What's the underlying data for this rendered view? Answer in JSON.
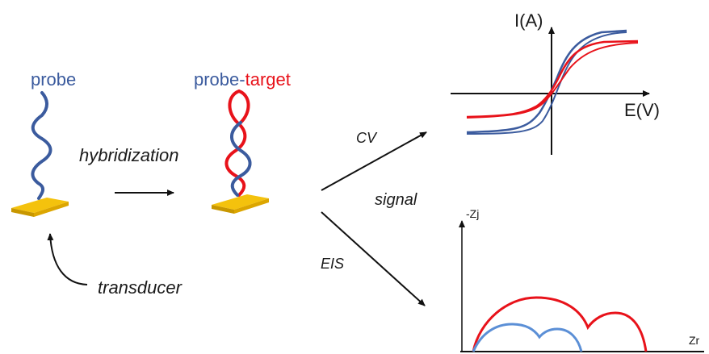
{
  "labels": {
    "probe": "probe",
    "probe_part": "probe",
    "dash": "-",
    "target_part": "target",
    "hybridization": "hybridization",
    "transducer": "transducer",
    "cv": "CV",
    "signal": "signal",
    "eis": "EIS"
  },
  "cv_plot": {
    "y_axis_label": "I(A)",
    "x_axis_label": "E(V)"
  },
  "eis_plot": {
    "y_axis_label": "-Zj",
    "x_axis_label": "Zr"
  },
  "colors": {
    "probe_strand": "#3b5b9e",
    "target_strand": "#e8121a",
    "electrode": "#f0b800",
    "eis_blue": "#5b8fd6",
    "eis_red": "#e8121a"
  }
}
